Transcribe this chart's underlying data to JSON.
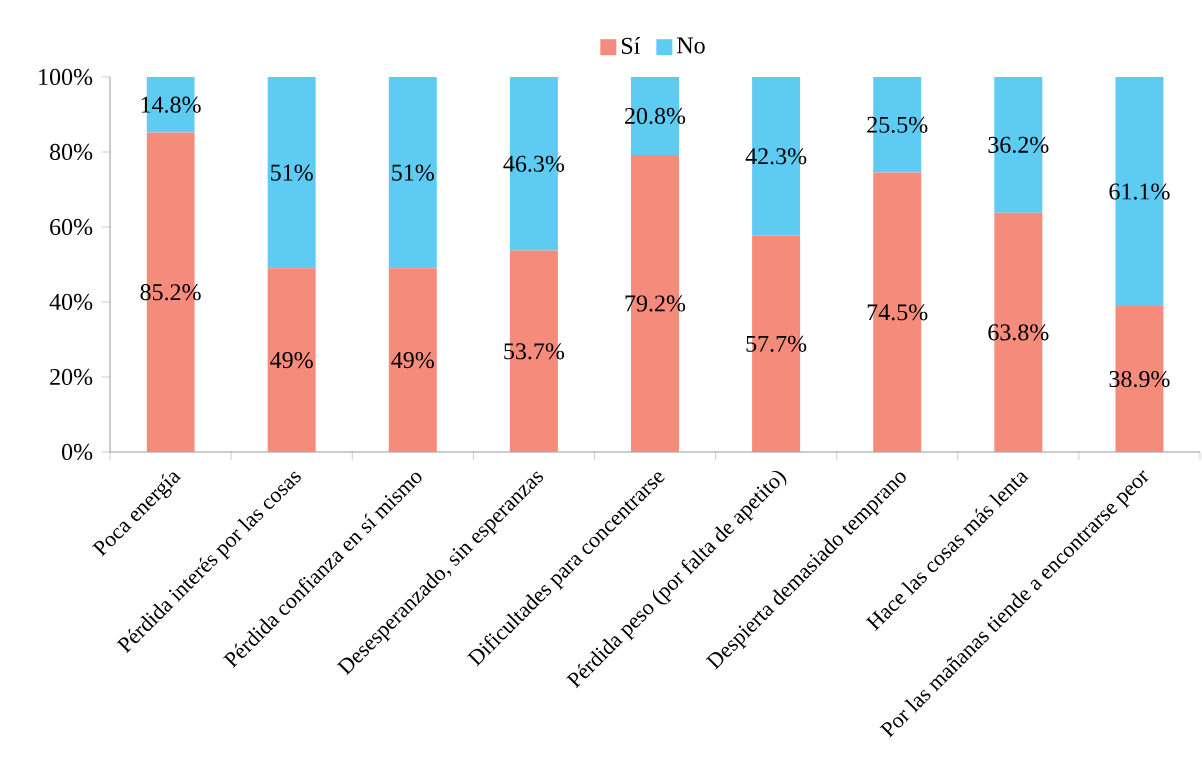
{
  "chart_data": {
    "type": "bar",
    "stacked": true,
    "legend": "top",
    "grid": false,
    "categories": [
      "Poca energía",
      "Pérdida interés por las cosas",
      "Pérdida confianza en sí mismo",
      "Desesperanzado, sin esperanzas",
      "Dificultades para concentrarse",
      "Pérdida peso (por falta de apetito)",
      "Despierta demasiado temprano",
      "Hace las cosas más lenta",
      "Por las mañanas tiende a encontrarse peor"
    ],
    "series": [
      {
        "name": "Sí",
        "color": "#f58b7b",
        "values": [
          85.2,
          49,
          49,
          53.7,
          79.2,
          57.7,
          74.5,
          63.8,
          38.9
        ],
        "value_labels": [
          "85.2%",
          "49%",
          "49%",
          "53.7%",
          "79.2%",
          "57.7%",
          "74.5%",
          "63.8%",
          "38.9%"
        ]
      },
      {
        "name": "No",
        "color": "#5ecbf3",
        "values": [
          14.8,
          51,
          51,
          46.3,
          20.8,
          42.3,
          25.5,
          36.2,
          61.1
        ],
        "value_labels": [
          "14.8%",
          "51%",
          "51%",
          "46.3%",
          "20.8%",
          "42.3%",
          "25.5%",
          "36.2%",
          "61.1%"
        ]
      }
    ],
    "ylim": [
      0,
      100
    ],
    "yticks": [
      {
        "value": 0,
        "label": "0%"
      },
      {
        "value": 20,
        "label": "20%"
      },
      {
        "value": 40,
        "label": "40%"
      },
      {
        "value": 60,
        "label": "60%"
      },
      {
        "value": 80,
        "label": "80%"
      },
      {
        "value": 100,
        "label": "100%"
      }
    ]
  }
}
